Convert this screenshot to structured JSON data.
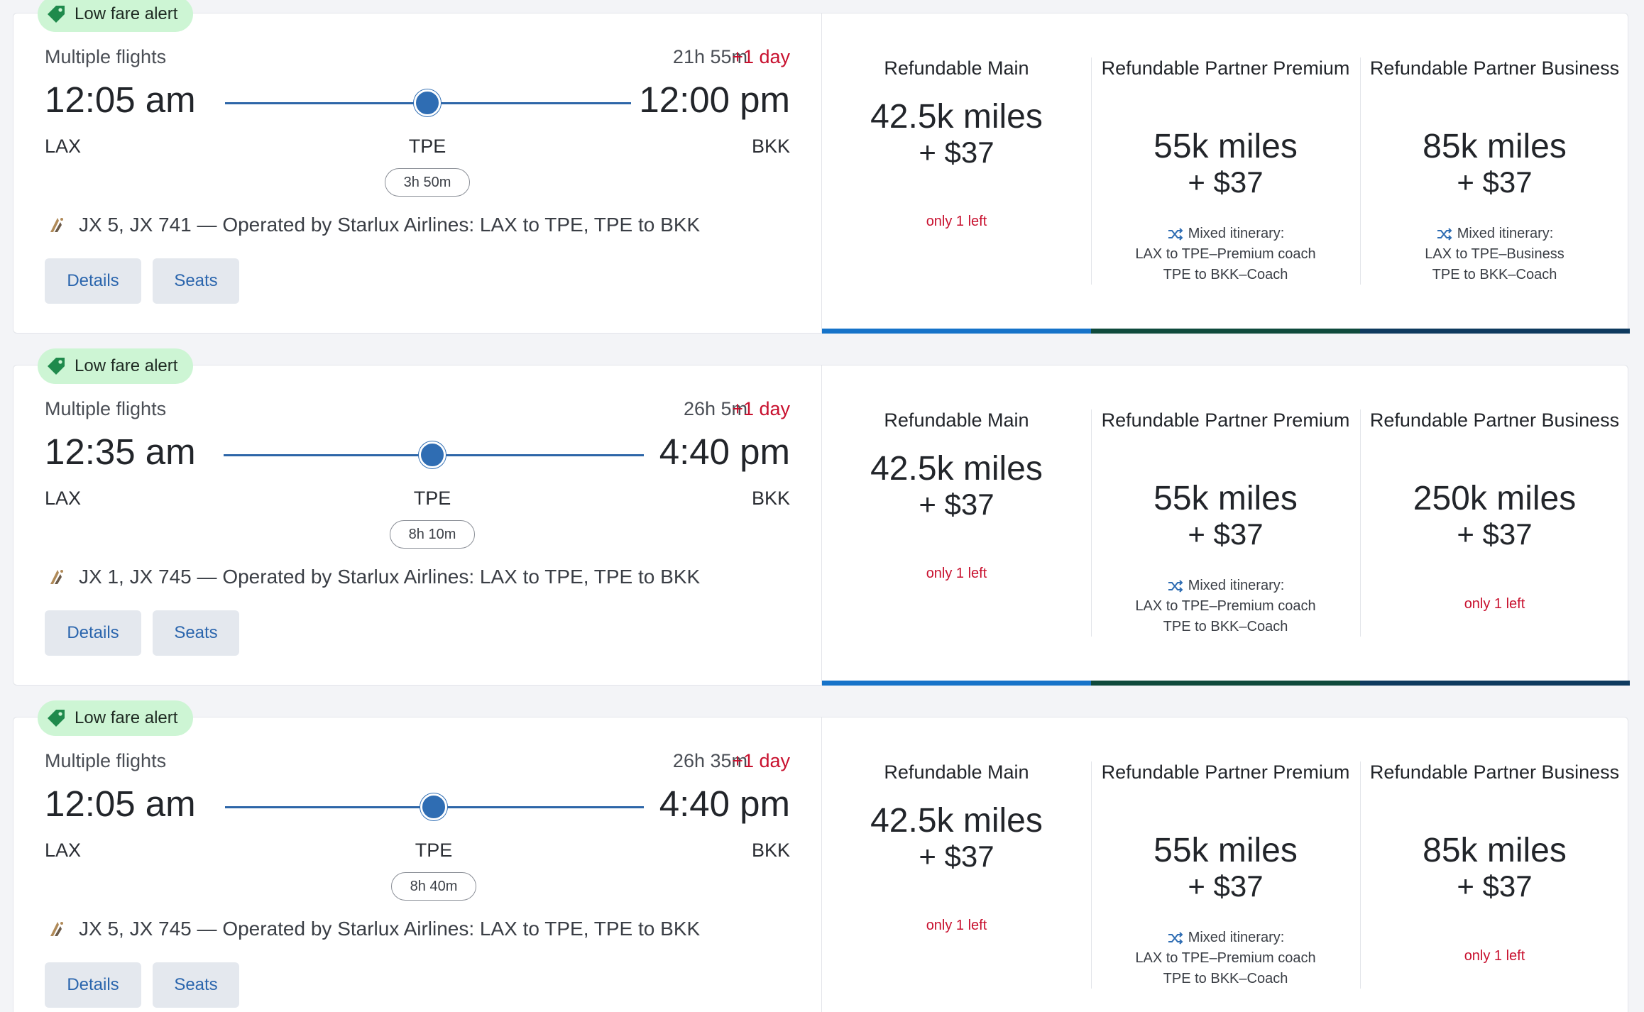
{
  "colors": {
    "accent_blue": "#2f6db3",
    "alert_red": "#c8102e",
    "badge_green": "#cdf5d4",
    "bar_main": "#1673c9",
    "bar_premium": "#0f4a3c",
    "bar_business": "#0e3a5f"
  },
  "cards": [
    {
      "badge": "Low fare alert",
      "type": "Multiple flights",
      "duration": "21h 55m",
      "plus_day": "+1 day",
      "depart_time": "12:05 am",
      "arrive_time": "12:00 pm",
      "origin": "LAX",
      "stop": "TPE",
      "dest": "BKK",
      "layover": "3h 50m",
      "operated": "JX 5, JX 741 — Operated by Starlux Airlines: LAX to TPE, TPE to BKK",
      "details_label": "Details",
      "seats_label": "Seats",
      "fares": [
        {
          "title": "Refundable Main",
          "miles": "42.5k miles",
          "price": "+ $37",
          "note": "only 1 left"
        },
        {
          "title": "Refundable Partner Premium",
          "miles": "55k miles",
          "price": "+ $37",
          "mixed_head": "Mixed itinerary:",
          "mixed_1": "LAX to TPE–Premium coach",
          "mixed_2": "TPE to BKK–Coach"
        },
        {
          "title": "Refundable Partner Business",
          "miles": "85k miles",
          "price": "+ $37",
          "mixed_head": "Mixed itinerary:",
          "mixed_1": "LAX to TPE–Business",
          "mixed_2": "TPE to BKK–Coach"
        }
      ]
    },
    {
      "badge": "Low fare alert",
      "type": "Multiple flights",
      "duration": "26h 5m",
      "plus_day": "+1 day",
      "depart_time": "12:35 am",
      "arrive_time": "4:40 pm",
      "origin": "LAX",
      "stop": "TPE",
      "dest": "BKK",
      "layover": "8h 10m",
      "operated": "JX 1, JX 745 — Operated by Starlux Airlines: LAX to TPE, TPE to BKK",
      "details_label": "Details",
      "seats_label": "Seats",
      "fares": [
        {
          "title": "Refundable Main",
          "miles": "42.5k miles",
          "price": "+ $37",
          "note": "only 1 left"
        },
        {
          "title": "Refundable Partner Premium",
          "miles": "55k miles",
          "price": "+ $37",
          "mixed_head": "Mixed itinerary:",
          "mixed_1": "LAX to TPE–Premium coach",
          "mixed_2": "TPE to BKK–Coach"
        },
        {
          "title": "Refundable Partner Business",
          "miles": "250k miles",
          "price": "+ $37",
          "note": "only 1 left"
        }
      ]
    },
    {
      "badge": "Low fare alert",
      "type": "Multiple flights",
      "duration": "26h 35m",
      "plus_day": "+1 day",
      "depart_time": "12:05 am",
      "arrive_time": "4:40 pm",
      "origin": "LAX",
      "stop": "TPE",
      "dest": "BKK",
      "layover": "8h 40m",
      "operated": "JX 5, JX 745 — Operated by Starlux Airlines: LAX to TPE, TPE to BKK",
      "details_label": "Details",
      "seats_label": "Seats",
      "fares": [
        {
          "title": "Refundable Main",
          "miles": "42.5k miles",
          "price": "+ $37",
          "note": "only 1 left"
        },
        {
          "title": "Refundable Partner Premium",
          "miles": "55k miles",
          "price": "+ $37",
          "mixed_head": "Mixed itinerary:",
          "mixed_1": "LAX to TPE–Premium coach",
          "mixed_2": "TPE to BKK–Coach"
        },
        {
          "title": "Refundable Partner Business",
          "miles": "85k miles",
          "price": "+ $37",
          "note": "only 1 left"
        }
      ]
    }
  ]
}
